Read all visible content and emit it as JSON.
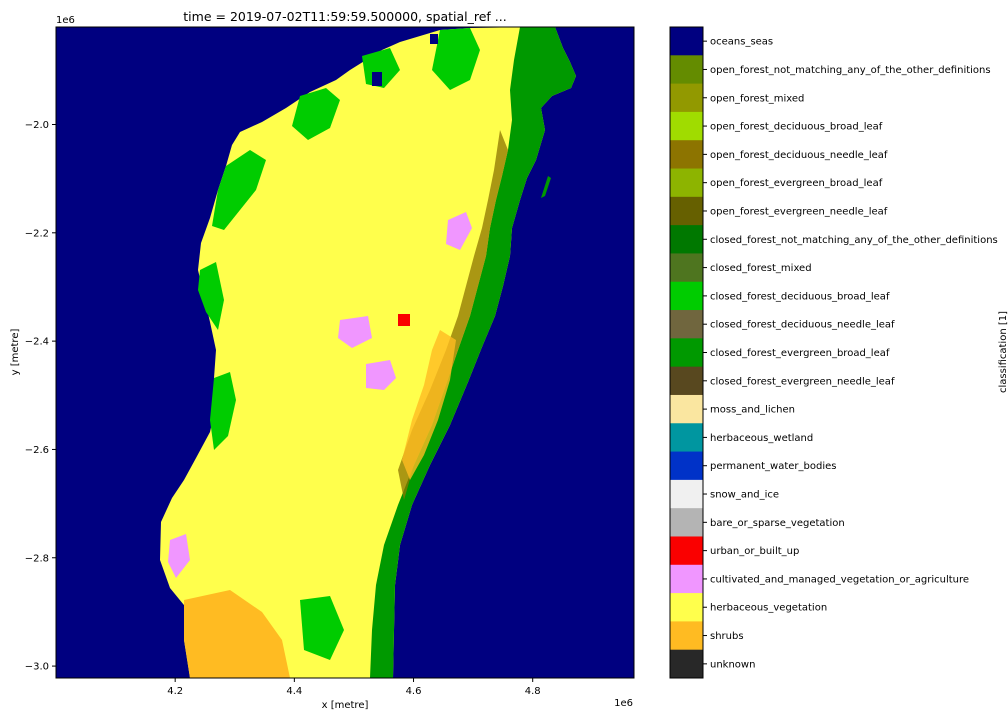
{
  "title": "time = 2019-07-02T11:59:59.500000, spatial_ref ...",
  "x_axis": {
    "label": "x [metre]",
    "offset_text": "1e6",
    "ticks": [
      {
        "value": 4.2,
        "label": "4.2"
      },
      {
        "value": 4.4,
        "label": "4.4"
      },
      {
        "value": 4.6,
        "label": "4.6"
      },
      {
        "value": 4.8,
        "label": "4.8"
      }
    ],
    "range": [
      4.0,
      4.97
    ]
  },
  "y_axis": {
    "label": "y [metre]",
    "offset_text": "1e6",
    "ticks": [
      {
        "value": -2.0,
        "label": "−2.0"
      },
      {
        "value": -2.2,
        "label": "−2.2"
      },
      {
        "value": -2.4,
        "label": "−2.4"
      },
      {
        "value": -2.6,
        "label": "−2.6"
      },
      {
        "value": -2.8,
        "label": "−2.8"
      },
      {
        "value": -3.0,
        "label": "−3.0"
      }
    ],
    "range": [
      -3.022,
      -1.82
    ]
  },
  "colorbar": {
    "label": "classification [1]",
    "classes": [
      {
        "name": "oceans_seas",
        "color": "#000080"
      },
      {
        "name": "open_forest_not_matching_any_of_the_other_definitions",
        "color": "#648c00"
      },
      {
        "name": "open_forest_mixed",
        "color": "#929900"
      },
      {
        "name": "open_forest_deciduous_broad_leaf",
        "color": "#a0dc00"
      },
      {
        "name": "open_forest_deciduous_needle_leaf",
        "color": "#8d7400"
      },
      {
        "name": "open_forest_evergreen_broad_leaf",
        "color": "#8db400"
      },
      {
        "name": "open_forest_evergreen_needle_leaf",
        "color": "#666000"
      },
      {
        "name": "closed_forest_not_matching_any_of_the_other_definitions",
        "color": "#007800"
      },
      {
        "name": "closed_forest_mixed",
        "color": "#4e751f"
      },
      {
        "name": "closed_forest_deciduous_broad_leaf",
        "color": "#00cc00"
      },
      {
        "name": "closed_forest_deciduous_needle_leaf",
        "color": "#70663e"
      },
      {
        "name": "closed_forest_evergreen_broad_leaf",
        "color": "#009900"
      },
      {
        "name": "closed_forest_evergreen_needle_leaf",
        "color": "#58481f"
      },
      {
        "name": "moss_and_lichen",
        "color": "#fae6a0"
      },
      {
        "name": "herbaceous_wetland",
        "color": "#0096a0"
      },
      {
        "name": "permanent_water_bodies",
        "color": "#0032c8"
      },
      {
        "name": "snow_and_ice",
        "color": "#f0f0f0"
      },
      {
        "name": "bare_or_sparse_vegetation",
        "color": "#b4b4b4"
      },
      {
        "name": "urban_or_built_up",
        "color": "#fa0000"
      },
      {
        "name": "cultivated_and_managed_vegetation_or_agriculture",
        "color": "#f096ff"
      },
      {
        "name": "herbaceous_vegetation",
        "color": "#ffff4c"
      },
      {
        "name": "shrubs",
        "color": "#ffbb22"
      },
      {
        "name": "unknown",
        "color": "#282828"
      }
    ]
  }
}
